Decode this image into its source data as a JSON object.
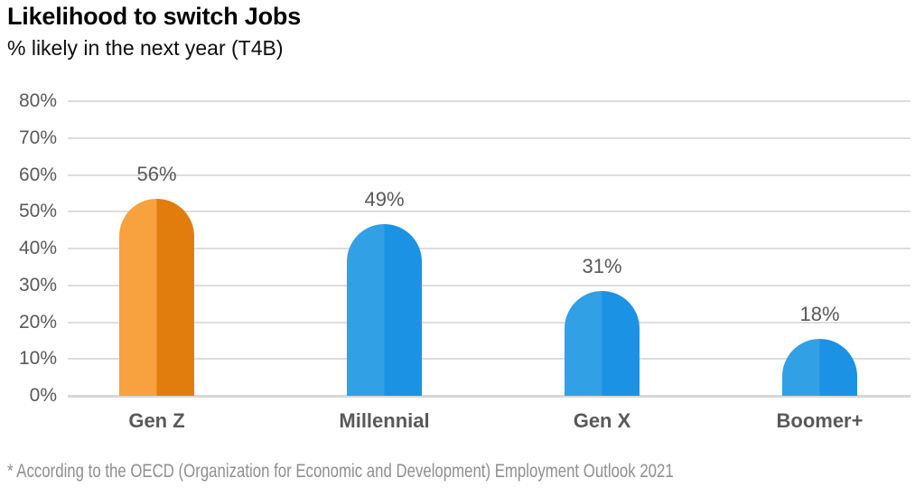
{
  "header": {
    "title": "Likelihood to switch Jobs",
    "subtitle": "% likely in the next year (T4B)"
  },
  "chart_data": {
    "type": "bar",
    "title": "Likelihood to switch Jobs",
    "subtitle": "% likely in the next year (T4B)",
    "categories": [
      "Gen Z",
      "Millennial",
      "Gen X",
      "Boomer+"
    ],
    "values": [
      56,
      49,
      31,
      18
    ],
    "value_labels": [
      "56%",
      "49%",
      "31%",
      "18%"
    ],
    "xlabel": "",
    "ylabel": "",
    "ylim": [
      0,
      80
    ],
    "ytick_step": 10,
    "ytick_labels": [
      "0%",
      "10%",
      "20%",
      "30%",
      "40%",
      "50%",
      "60%",
      "70%",
      "80%"
    ],
    "grid": true,
    "legend": false,
    "bar_style": "rounded-top-capsule-with-vertical-split-shading",
    "bar_colors": [
      {
        "light": "#F7A13F",
        "dark": "#E07D0C"
      },
      {
        "light": "#31A0E5",
        "dark": "#1C92E5"
      },
      {
        "light": "#31A0E5",
        "dark": "#1C92E5"
      },
      {
        "light": "#31A0E5",
        "dark": "#1C92E5"
      }
    ]
  },
  "footnote": {
    "text": "* According to the OECD (Organization for Economic and Development) Employment Outlook 2021"
  },
  "colors": {
    "background": "#FFFFFF",
    "title_text": "#000000",
    "axis_text": "#595959",
    "category_text": "#595959",
    "value_text": "#595959",
    "gridline": "#DDDDDD",
    "footnote_text": "#8F8F8F"
  }
}
